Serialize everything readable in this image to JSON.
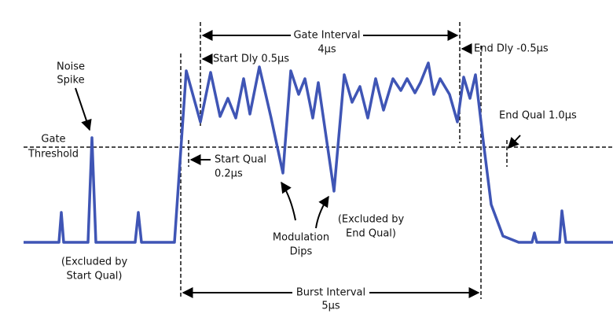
{
  "labels": {
    "noise_spike": [
      "Noise",
      "Spike"
    ],
    "gate_threshold": [
      "Gate",
      "Threshold"
    ],
    "gate_interval": [
      "Gate Interval",
      "4µs"
    ],
    "start_dly": "Start Dly 0.5µs",
    "end_dly": "End Dly -0.5µs",
    "end_qual": "End Qual 1.0µs",
    "start_qual": [
      "Start Qual",
      "0.2µs"
    ],
    "excluded_start": [
      "(Excluded by",
      "Start Qual)"
    ],
    "modulation_dips": [
      "Modulation",
      "Dips"
    ],
    "excluded_end": [
      "(Excluded by",
      "End Qual)"
    ],
    "burst_interval": [
      "Burst Interval",
      "5µs"
    ]
  }
}
